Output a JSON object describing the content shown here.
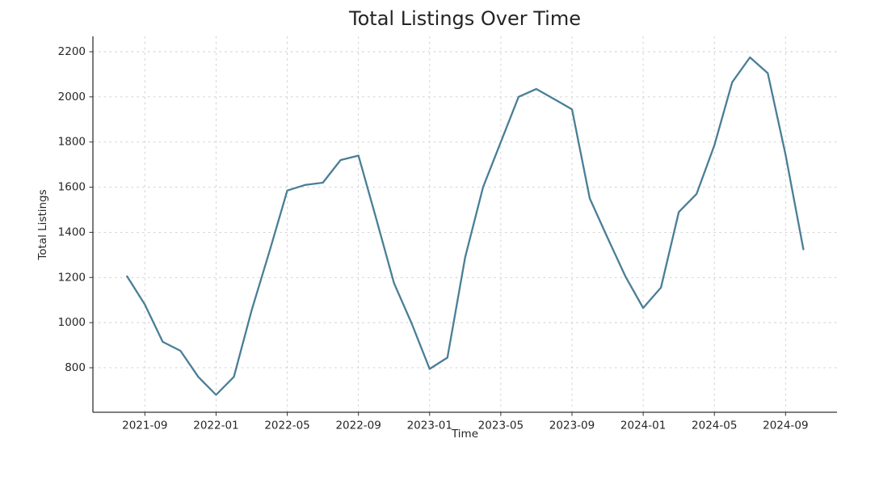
{
  "figure": {
    "title": "Total Listings Over Time",
    "xlabel": "Time",
    "ylabel": "Total Listings"
  },
  "chart_data": {
    "type": "line",
    "title": "Total Listings Over Time",
    "xlabel": "Time",
    "ylabel": "Total Listings",
    "legend": "none",
    "grid": "dashed-both-axes",
    "x": [
      "2021-08",
      "2021-09",
      "2021-10",
      "2021-11",
      "2021-12",
      "2022-01",
      "2022-02",
      "2022-03",
      "2022-04",
      "2022-05",
      "2022-06",
      "2022-07",
      "2022-08",
      "2022-09",
      "2022-10",
      "2022-11",
      "2022-12",
      "2023-01",
      "2023-02",
      "2023-03",
      "2023-04",
      "2023-05",
      "2023-06",
      "2023-07",
      "2023-08",
      "2023-09",
      "2023-10",
      "2023-11",
      "2023-12",
      "2024-01",
      "2024-02",
      "2024-03",
      "2024-04",
      "2024-05",
      "2024-06",
      "2024-07",
      "2024-08",
      "2024-09",
      "2024-10"
    ],
    "values": [
      1205,
      1080,
      915,
      875,
      760,
      680,
      760,
      1055,
      1315,
      1585,
      1610,
      1620,
      1720,
      1740,
      1460,
      1175,
      995,
      795,
      845,
      1290,
      1600,
      1800,
      2000,
      2035,
      1990,
      1945,
      1550,
      1375,
      1205,
      1065,
      1155,
      1490,
      1570,
      1785,
      2065,
      2175,
      2105,
      1745,
      1325
    ],
    "xtick_labels": [
      "2021-09",
      "2022-01",
      "2022-05",
      "2022-09",
      "2023-01",
      "2023-05",
      "2023-09",
      "2024-01",
      "2024-05",
      "2024-09"
    ],
    "yticks": [
      800,
      1000,
      1200,
      1400,
      1600,
      1800,
      2000,
      2200
    ],
    "ytick_labels": [
      "800",
      "1000",
      "1200",
      "1400",
      "1600",
      "1800",
      "2000",
      "2200"
    ],
    "ylim": [
      603,
      2268
    ],
    "colors": {
      "line": "#4a7e96",
      "grid": "#cbcbcb",
      "spine": "#333333",
      "tick_text": "#262626",
      "background": "#ffffff"
    }
  }
}
